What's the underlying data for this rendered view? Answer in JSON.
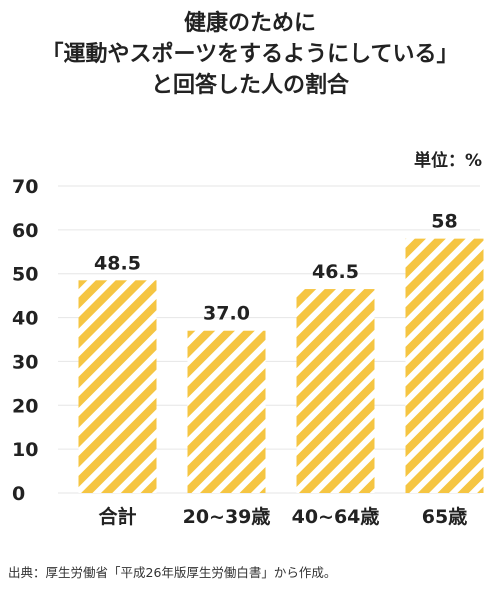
{
  "title_lines": [
    "健康のために",
    "「運動やスポーツをするようにしている」",
    "と回答した人の割合"
  ],
  "unit_label": "単位：%",
  "source": "出典：厚生労働省「平成26年版厚生労働白書」から作成。",
  "colors": {
    "bar": "#f5c542",
    "stripe": "#ffffff",
    "text": "#222222",
    "grid": "#e6e6e6"
  },
  "chart_data": {
    "type": "bar",
    "categories": [
      "合計",
      "20~39歳",
      "40~64歳",
      "65歳"
    ],
    "values": [
      48.5,
      37.0,
      46.5,
      58
    ],
    "value_labels": [
      "48.5",
      "37.0",
      "46.5",
      "58"
    ],
    "yticks": [
      0,
      10,
      20,
      30,
      40,
      50,
      60,
      70
    ],
    "ylim": [
      0,
      70
    ],
    "grid": true
  }
}
